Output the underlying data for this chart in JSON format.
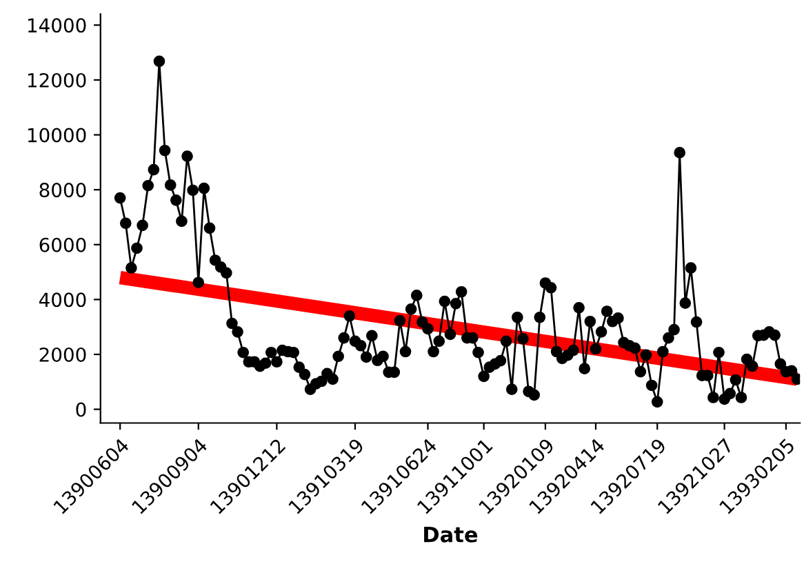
{
  "chart_data": {
    "type": "line",
    "xlabel": "Date",
    "ylim": [
      -500,
      14400
    ],
    "categories": [
      "13900604",
      null,
      null,
      null,
      null,
      null,
      null,
      null,
      null,
      null,
      null,
      null,
      null,
      null,
      "13900904",
      null,
      null,
      null,
      null,
      null,
      null,
      null,
      null,
      null,
      null,
      null,
      null,
      null,
      "13901212",
      null,
      null,
      null,
      null,
      null,
      null,
      null,
      null,
      null,
      null,
      null,
      null,
      null,
      "13910319",
      null,
      null,
      null,
      null,
      null,
      null,
      null,
      null,
      null,
      null,
      null,
      null,
      "13910624",
      null,
      null,
      null,
      null,
      null,
      null,
      null,
      null,
      null,
      "13911001",
      null,
      null,
      null,
      null,
      null,
      null,
      null,
      null,
      null,
      null,
      "13920109",
      null,
      null,
      null,
      null,
      null,
      null,
      null,
      null,
      "13920414",
      null,
      null,
      null,
      null,
      null,
      null,
      null,
      null,
      null,
      null,
      "13920719",
      null,
      null,
      null,
      null,
      null,
      null,
      null,
      null,
      null,
      null,
      null,
      "13921027",
      null,
      null,
      null,
      null,
      null,
      null,
      null,
      null,
      null,
      null,
      "13930205",
      null,
      null
    ],
    "yticks": [
      0,
      2000,
      4000,
      6000,
      8000,
      10000,
      12000,
      14000
    ],
    "grid": false,
    "series": [
      {
        "type": "line",
        "color": "#000000",
        "marker": "circle",
        "line_style": "solid",
        "values": [
          7700,
          6780,
          5150,
          5870,
          6700,
          8150,
          8730,
          12680,
          9430,
          8170,
          7620,
          6850,
          9220,
          7980,
          4620,
          8050,
          6600,
          5430,
          5180,
          4970,
          3130,
          2820,
          2070,
          1730,
          1730,
          1570,
          1680,
          2070,
          1730,
          2150,
          2100,
          2070,
          1530,
          1270,
          730,
          930,
          1020,
          1300,
          1100,
          1930,
          2600,
          3400,
          2480,
          2320,
          1900,
          2680,
          1780,
          1930,
          1350,
          1350,
          3230,
          2100,
          3650,
          4150,
          3180,
          2930,
          2100,
          2480,
          3930,
          2730,
          3850,
          4280,
          2600,
          2600,
          2070,
          1200,
          1530,
          1650,
          1770,
          2480,
          730,
          3350,
          2570,
          650,
          520,
          3350,
          4600,
          4430,
          2100,
          1850,
          1970,
          2150,
          3700,
          1480,
          3200,
          2200,
          2820,
          3570,
          3200,
          3320,
          2430,
          2320,
          2230,
          1370,
          1980,
          870,
          270,
          2100,
          2600,
          2900,
          9350,
          3870,
          5150,
          3180,
          1230,
          1230,
          430,
          2070,
          370,
          570,
          1070,
          430,
          1820,
          1570,
          2680,
          2700,
          2820,
          2700,
          1650,
          1370,
          1400,
          1100
        ]
      },
      {
        "type": "line",
        "color": "#ff0000",
        "marker": "none",
        "line_style": "solid",
        "values": [
          4800,
          null,
          null,
          null,
          null,
          null,
          null,
          null,
          null,
          null,
          null,
          null,
          null,
          null,
          null,
          null,
          null,
          null,
          null,
          null,
          null,
          null,
          null,
          null,
          null,
          null,
          null,
          null,
          null,
          null,
          null,
          null,
          null,
          null,
          null,
          null,
          null,
          null,
          null,
          null,
          null,
          null,
          null,
          null,
          null,
          null,
          null,
          null,
          null,
          null,
          null,
          null,
          null,
          null,
          null,
          null,
          null,
          null,
          null,
          null,
          null,
          null,
          null,
          null,
          null,
          null,
          null,
          null,
          null,
          null,
          null,
          null,
          null,
          null,
          null,
          null,
          null,
          null,
          null,
          null,
          null,
          null,
          null,
          null,
          null,
          null,
          null,
          null,
          null,
          null,
          null,
          null,
          null,
          null,
          null,
          null,
          null,
          null,
          null,
          null,
          null,
          null,
          null,
          null,
          null,
          null,
          null,
          null,
          null,
          null,
          null,
          null,
          null,
          null,
          null,
          null,
          null,
          null,
          null,
          null,
          null,
          1100
        ]
      }
    ]
  }
}
